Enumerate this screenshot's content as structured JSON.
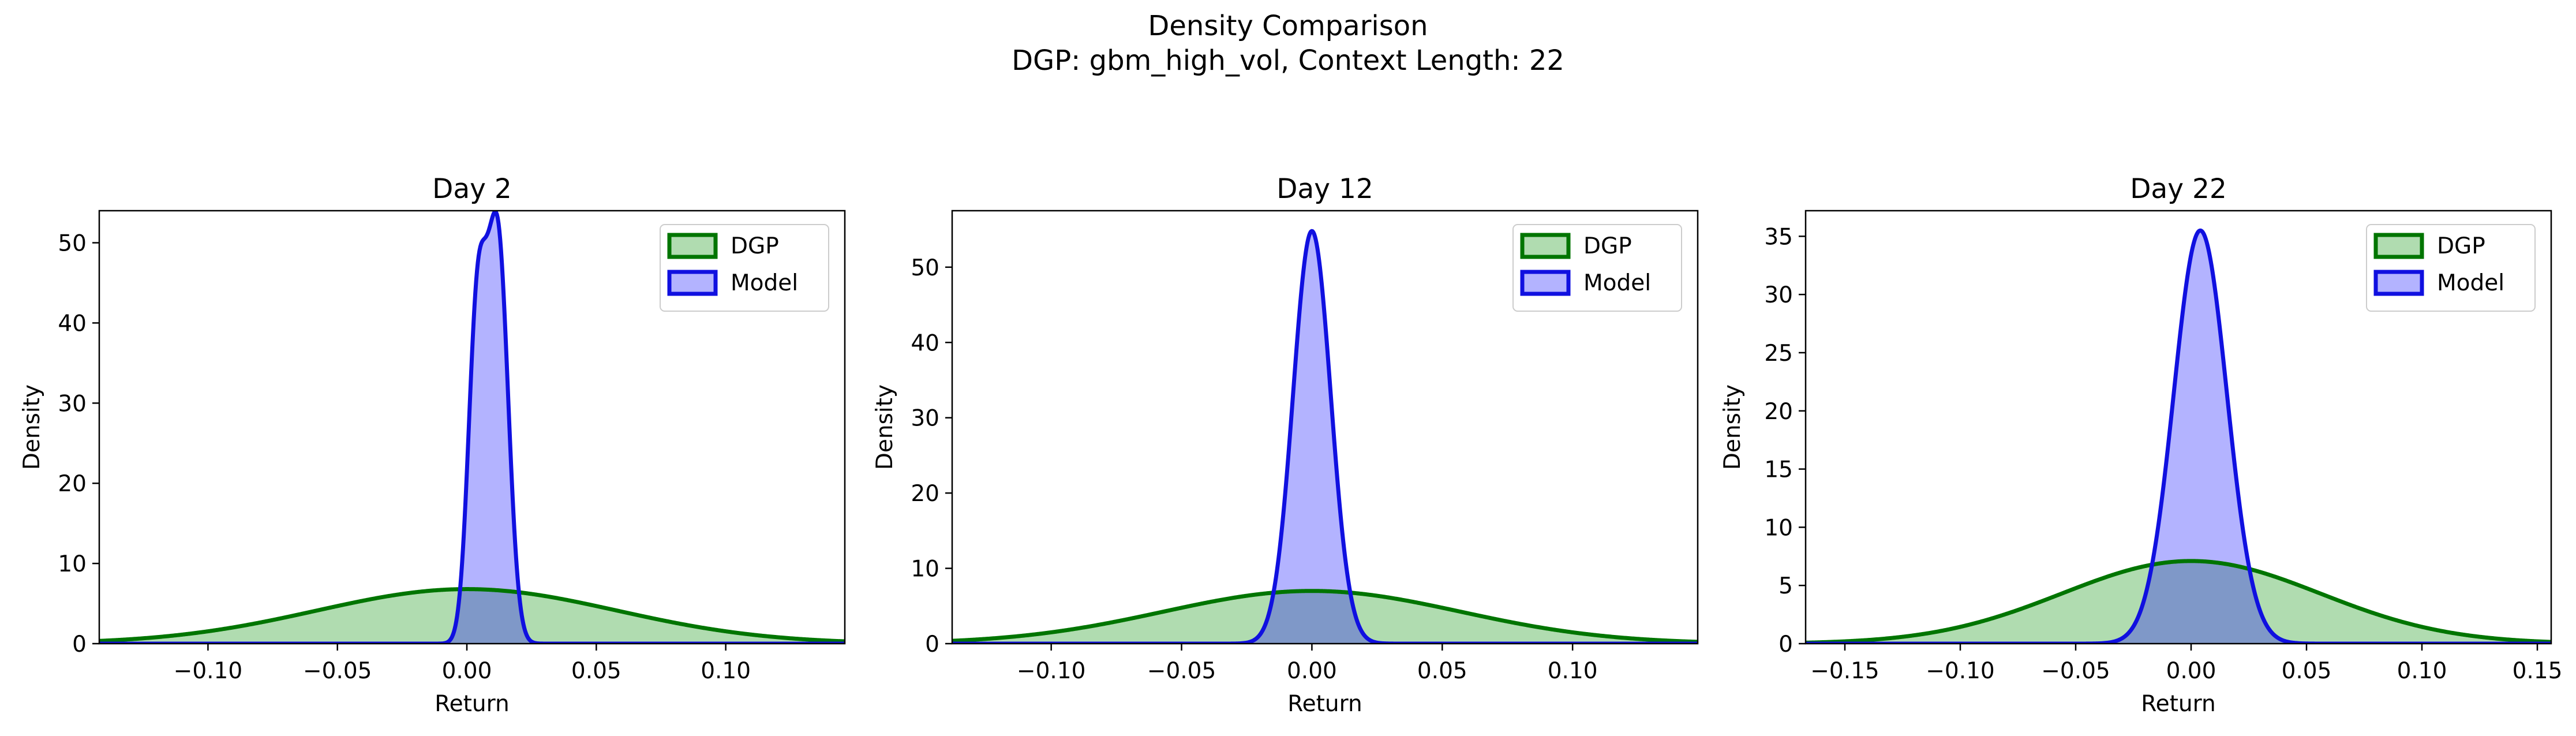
{
  "figure": {
    "title": "Density Comparison",
    "subtitle": "DGP: gbm_high_vol, Context Length: 22"
  },
  "colors": {
    "dgp_line": "#007500",
    "dgp_fill": "#b0dcb0",
    "model_line": "#1010e0",
    "model_fill": "#b3b3ff",
    "overlap_fill": "#7f98c8"
  },
  "chart_data": [
    {
      "type": "area",
      "title": "Day 2",
      "xlabel": "Return",
      "ylabel": "Density",
      "xlim": [
        -0.142,
        0.146
      ],
      "ylim": [
        0,
        54
      ],
      "xticks": [
        -0.1,
        -0.05,
        0.0,
        0.05,
        0.1
      ],
      "xtick_labels": [
        "−0.10",
        "−0.05",
        "0.00",
        "0.05",
        "0.10"
      ],
      "yticks": [
        0,
        10,
        20,
        30,
        40,
        50
      ],
      "ytick_labels": [
        "0",
        "10",
        "20",
        "30",
        "40",
        "50"
      ],
      "legend": "top-right",
      "series": [
        {
          "name": "DGP",
          "kind": "gaussian",
          "mean": 0.0,
          "sd": 0.058,
          "peak": 6.8
        },
        {
          "name": "Model",
          "kind": "bimodal",
          "components": [
            {
              "mean": 0.004,
              "sd": 0.0035,
              "peak": 40
            },
            {
              "mean": 0.012,
              "sd": 0.004,
              "peak": 50
            }
          ]
        }
      ]
    },
    {
      "type": "area",
      "title": "Day 12",
      "xlabel": "Return",
      "ylabel": "Density",
      "xlim": [
        -0.138,
        0.148
      ],
      "ylim": [
        0,
        57.5
      ],
      "xticks": [
        -0.1,
        -0.05,
        0.0,
        0.05,
        0.1
      ],
      "xtick_labels": [
        "−0.10",
        "−0.05",
        "0.00",
        "0.05",
        "0.10"
      ],
      "yticks": [
        0,
        10,
        20,
        30,
        40,
        50
      ],
      "ytick_labels": [
        "0",
        "10",
        "20",
        "30",
        "40",
        "50"
      ],
      "legend": "top-right",
      "series": [
        {
          "name": "DGP",
          "kind": "gaussian",
          "mean": 0.0,
          "sd": 0.057,
          "peak": 7.0
        },
        {
          "name": "Model",
          "kind": "gaussian",
          "mean": 0.0,
          "sd": 0.0072,
          "peak": 54.8
        }
      ]
    },
    {
      "type": "area",
      "title": "Day 22",
      "xlabel": "Return",
      "ylabel": "Density",
      "xlim": [
        -0.167,
        0.156
      ],
      "ylim": [
        0,
        37.2
      ],
      "xticks": [
        -0.15,
        -0.1,
        -0.05,
        0.0,
        0.05,
        0.1,
        0.15
      ],
      "xtick_labels": [
        "−0.15",
        "−0.10",
        "−0.05",
        "0.00",
        "0.05",
        "0.10",
        "0.15"
      ],
      "yticks": [
        0,
        5,
        10,
        15,
        20,
        25,
        30,
        35
      ],
      "ytick_labels": [
        "0",
        "5",
        "10",
        "15",
        "20",
        "25",
        "30",
        "35"
      ],
      "legend": "top-right",
      "series": [
        {
          "name": "DGP",
          "kind": "gaussian",
          "mean": 0.0,
          "sd": 0.056,
          "peak": 7.1
        },
        {
          "name": "Model",
          "kind": "gaussian",
          "mean": 0.004,
          "sd": 0.0115,
          "peak": 35.5
        }
      ]
    }
  ]
}
